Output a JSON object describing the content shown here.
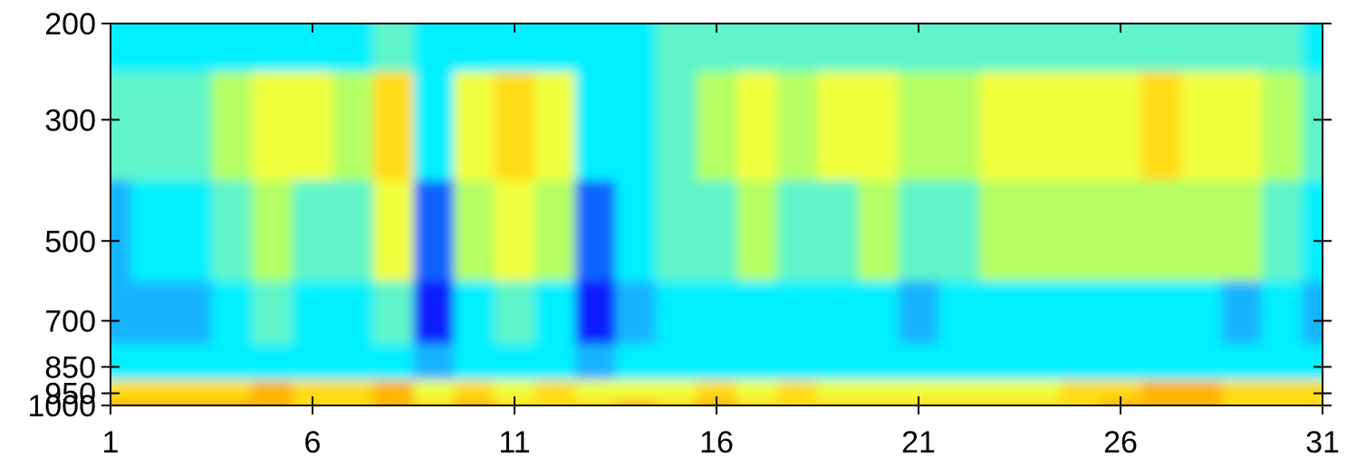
{
  "chart_data": {
    "type": "heatmap",
    "title": "",
    "xlabel": "",
    "ylabel": "",
    "x": [
      1,
      6,
      11,
      16,
      21,
      26,
      31
    ],
    "xlim": [
      1,
      31
    ],
    "xtick_labels": [
      "1",
      "6",
      "11",
      "16",
      "21",
      "26",
      "31"
    ],
    "y_levels": [
      200,
      300,
      500,
      700,
      850,
      950,
      1000
    ],
    "ytick_labels": [
      "200",
      "300",
      "500",
      "700",
      "850",
      "950",
      "1000"
    ],
    "y_scale": "log",
    "y_inverted": true,
    "grid": false,
    "colormap": [
      "#0a1eff",
      "#0a64ff",
      "#19b4ff",
      "#00f0ff",
      "#5ff5c8",
      "#b4ff64",
      "#f0ff3c",
      "#ffdc14",
      "#ffb400"
    ],
    "x_days": [
      1,
      2,
      3,
      4,
      5,
      6,
      7,
      8,
      9,
      10,
      11,
      12,
      13,
      14,
      15,
      16,
      17,
      18,
      19,
      20,
      21,
      22,
      23,
      24,
      25,
      26,
      27,
      28,
      29,
      30,
      31
    ],
    "values": {
      "200": [
        3,
        3,
        3,
        3,
        3,
        3,
        3,
        4,
        3,
        3,
        3,
        3,
        3,
        3,
        4,
        4,
        4,
        4,
        4,
        4,
        4,
        4,
        4,
        4,
        4,
        4,
        4,
        4,
        4,
        4,
        3
      ],
      "300": [
        4,
        4,
        4,
        5,
        6,
        6,
        5,
        7,
        3,
        6,
        7,
        6,
        3,
        3,
        4,
        5,
        6,
        5,
        6,
        6,
        5,
        5,
        6,
        6,
        6,
        6,
        7,
        6,
        6,
        5,
        4
      ],
      "500": [
        2,
        3,
        3,
        4,
        5,
        4,
        4,
        6,
        1,
        5,
        6,
        5,
        1,
        3,
        4,
        4,
        5,
        4,
        4,
        5,
        4,
        4,
        5,
        5,
        5,
        5,
        5,
        5,
        5,
        4,
        3
      ],
      "700": [
        2,
        2,
        2,
        3,
        4,
        3,
        3,
        4,
        0,
        3,
        4,
        3,
        0,
        2,
        3,
        3,
        3,
        3,
        3,
        3,
        2,
        3,
        3,
        3,
        3,
        3,
        3,
        3,
        2,
        3,
        2
      ],
      "850": [
        3,
        3,
        3,
        3,
        3,
        3,
        3,
        3,
        2,
        3,
        3,
        3,
        2,
        3,
        3,
        3,
        3,
        3,
        3,
        3,
        3,
        3,
        3,
        3,
        3,
        3,
        3,
        3,
        3,
        3,
        3
      ],
      "950": [
        7,
        7,
        7,
        7,
        8,
        7,
        7,
        8,
        6,
        7,
        6,
        7,
        6,
        6,
        6,
        7,
        6,
        7,
        6,
        6,
        6,
        6,
        6,
        6,
        7,
        7,
        8,
        8,
        7,
        7,
        7
      ],
      "1000": [
        8,
        8,
        8,
        8,
        8,
        7,
        7,
        8,
        7,
        8,
        7,
        7,
        7,
        8,
        7,
        8,
        7,
        7,
        7,
        7,
        7,
        7,
        7,
        7,
        7,
        8,
        8,
        8,
        7,
        7,
        7
      ]
    }
  }
}
